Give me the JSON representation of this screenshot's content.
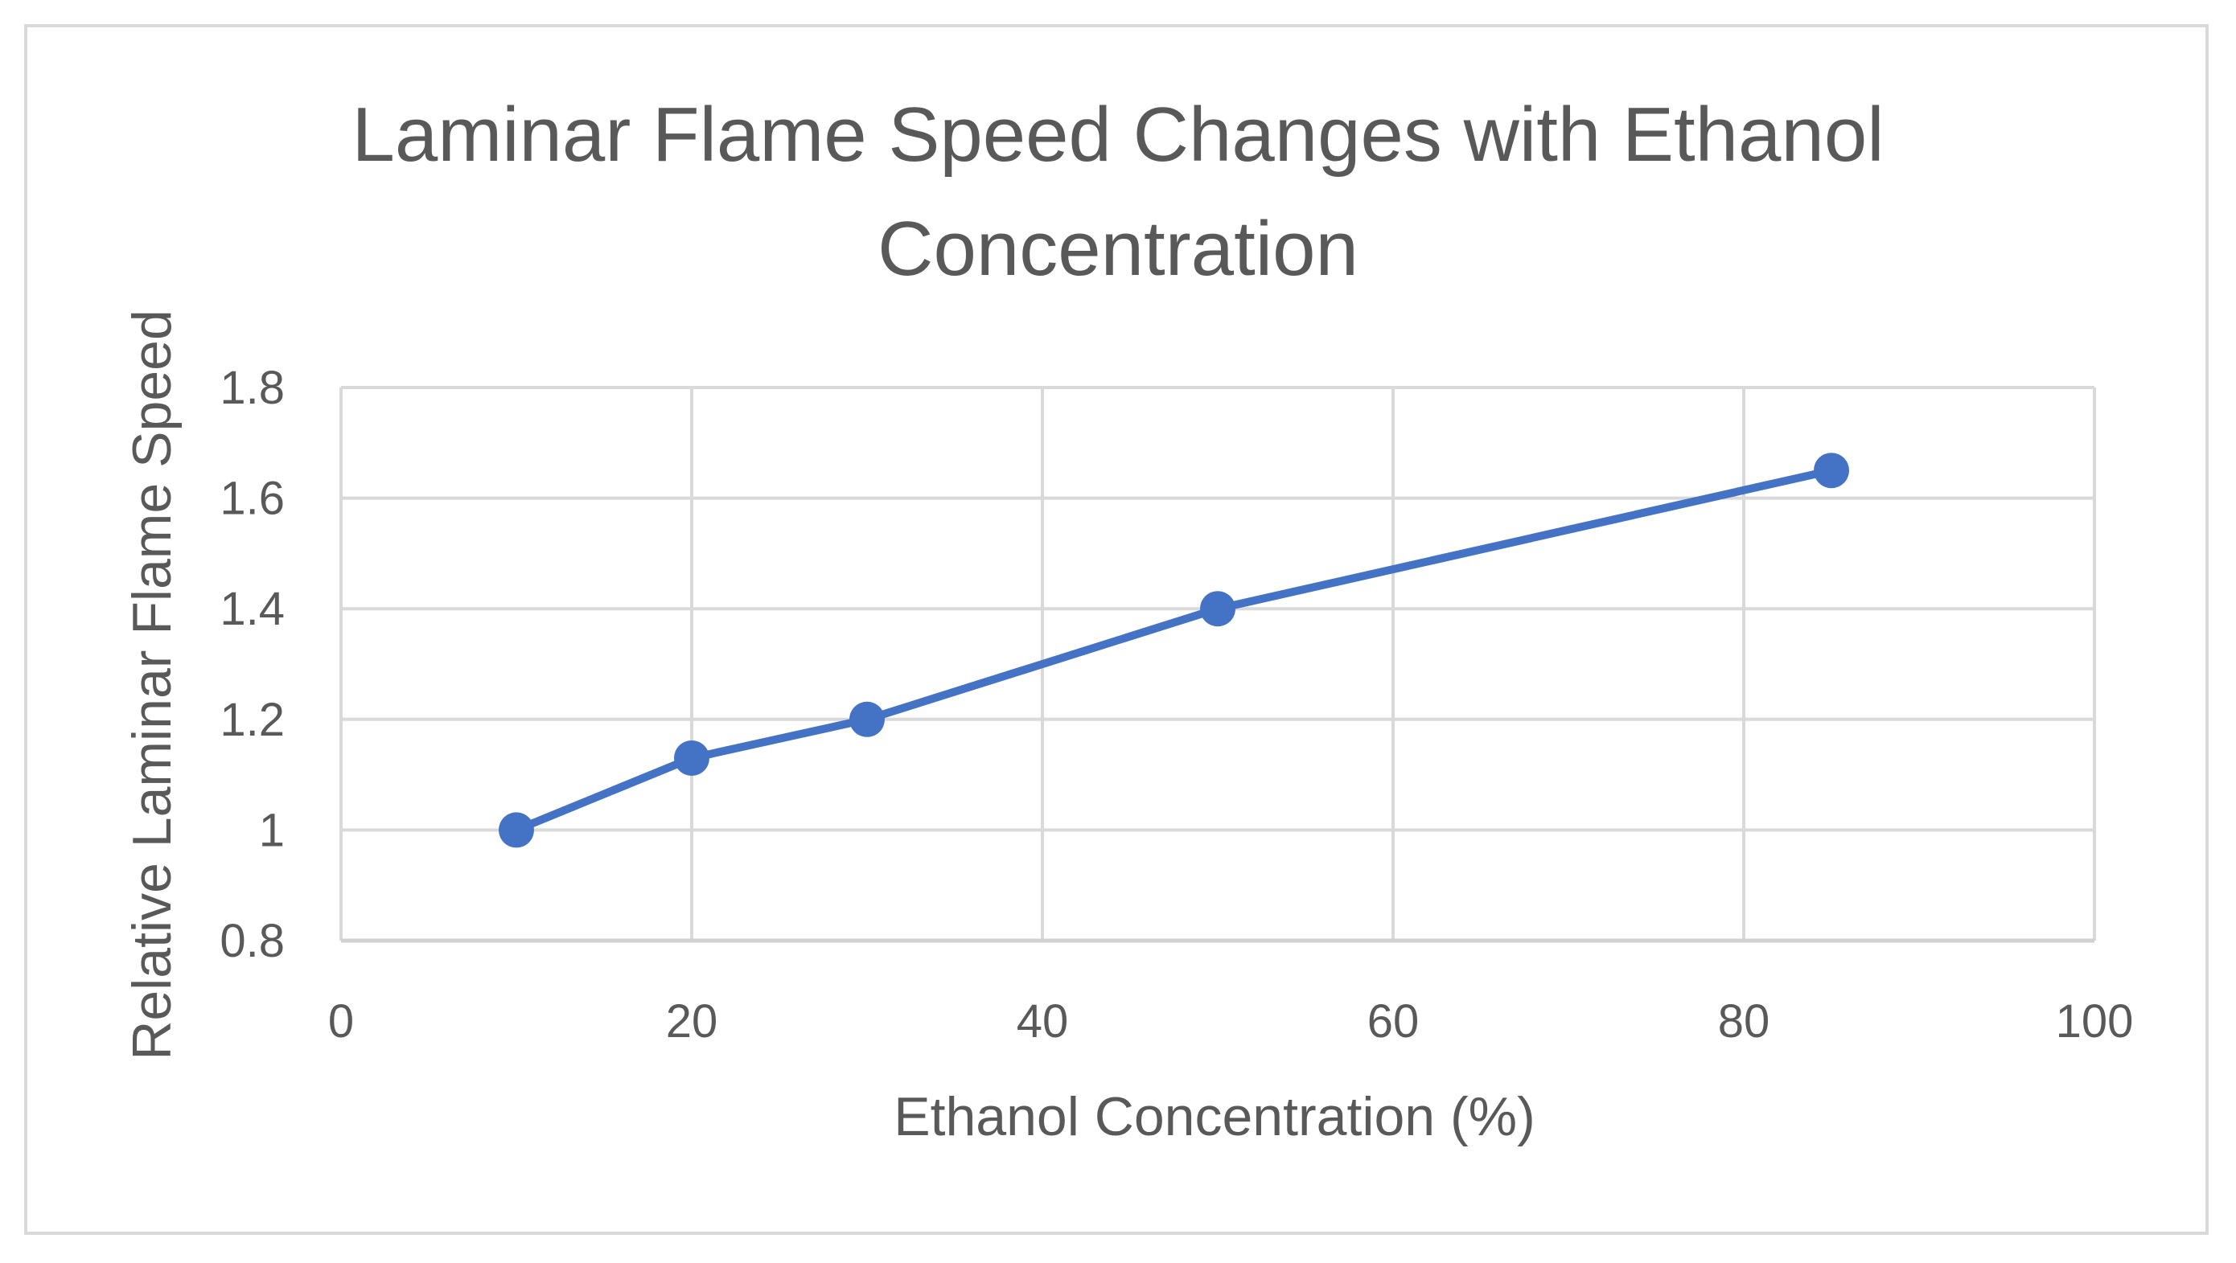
{
  "chart_data": {
    "type": "line",
    "title_lines": [
      "Laminar Flame Speed Changes with Ethanol",
      "Concentration"
    ],
    "xlabel": "Ethanol Concentration (%)",
    "ylabel": "Relative Laminar Flame Speed",
    "xlim": [
      0,
      100
    ],
    "ylim": [
      0.8,
      1.8
    ],
    "x_ticks": [
      0,
      20,
      40,
      60,
      80,
      100
    ],
    "y_ticks": [
      0.8,
      1,
      1.2,
      1.4,
      1.6,
      1.8
    ],
    "x_tick_labels": [
      "0",
      "20",
      "40",
      "60",
      "80",
      "100"
    ],
    "y_tick_labels": [
      "0.8",
      "1",
      "1.2",
      "1.4",
      "1.6",
      "1.8"
    ],
    "grid": true,
    "legend": "none",
    "series": [
      {
        "color": "#4472c4",
        "marker": "circle",
        "x": [
          10,
          20,
          30,
          50,
          85
        ],
        "y": [
          1.0,
          1.13,
          1.2,
          1.4,
          1.65
        ]
      }
    ],
    "colors": {
      "grid": "#d9d9d9",
      "text": "#595959",
      "frame": "#d9d9d9"
    }
  }
}
